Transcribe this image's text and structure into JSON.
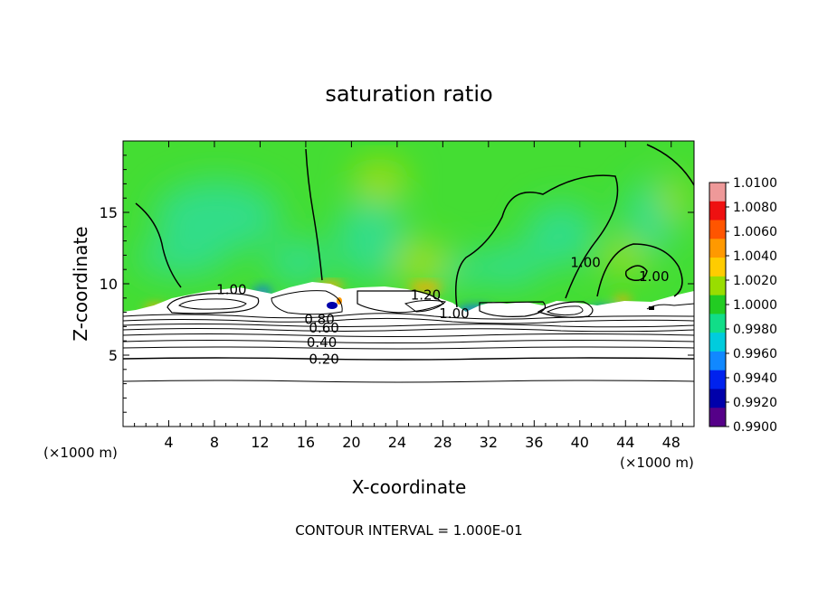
{
  "chart_data": {
    "type": "heatmap",
    "title": "saturation ratio",
    "xlabel": "X-coordinate",
    "ylabel": "Z-coordinate",
    "x_unit": "(×1000 m)",
    "y_unit": "(×1000 m)",
    "xlim": [
      0,
      50
    ],
    "ylim": [
      0,
      20
    ],
    "x_ticks": [
      4,
      8,
      12,
      16,
      20,
      24,
      28,
      32,
      36,
      40,
      44,
      48
    ],
    "y_ticks": [
      5,
      10,
      15
    ],
    "colorbar": {
      "min": 0.99,
      "max": 1.01,
      "labels": [
        "1.0100",
        "1.0080",
        "1.0060",
        "1.0040",
        "1.0020",
        "1.0000",
        "0.9980",
        "0.9960",
        "0.9940",
        "0.9920",
        "0.9900"
      ],
      "colors": [
        "#ee9999",
        "#ee1111",
        "#ff5500",
        "#ff9900",
        "#ffcc00",
        "#99dd00",
        "#22cc22",
        "#11dd88",
        "#00ccdd",
        "#1188ff",
        "#0022ee",
        "#0000aa",
        "#550088"
      ]
    },
    "field_colors": {
      "background": "#44dd33",
      "moist_patch": "#33dd88",
      "dry_patch": "#99dd11",
      "near_cloud_warm": "#ffaa00",
      "near_cloud_cold": "#1166ff"
    },
    "contour_labels": [
      {
        "text": "1.00",
        "x": 9.5,
        "z": 9.6
      },
      {
        "text": "1.20",
        "x": 26.5,
        "z": 9.2
      },
      {
        "text": "1.00",
        "x": 29.0,
        "z": 7.9
      },
      {
        "text": "1.00",
        "x": 40.5,
        "z": 11.5
      },
      {
        "text": "1.00",
        "x": 46.5,
        "z": 10.5
      },
      {
        "text": "0.80",
        "x": 17.2,
        "z": 7.5
      },
      {
        "text": "0.60",
        "x": 17.6,
        "z": 6.9
      },
      {
        "text": "0.40",
        "x": 17.4,
        "z": 5.9
      },
      {
        "text": "0.20",
        "x": 17.6,
        "z": 4.7
      }
    ],
    "contour_interval_text": "CONTOUR INTERVAL = 1.000E-01"
  }
}
